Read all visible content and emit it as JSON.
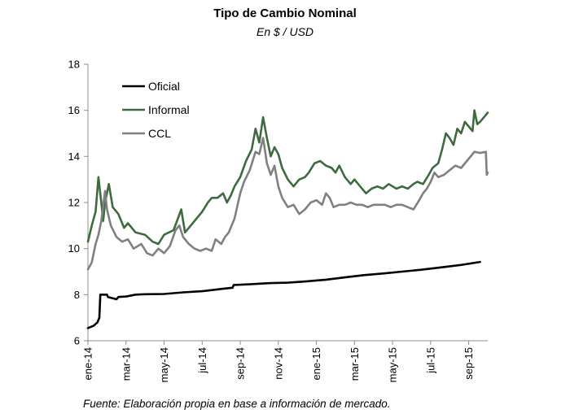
{
  "chart_data": {
    "type": "line",
    "title": "Tipo de Cambio Nominal",
    "subtitle": "En $ / USD",
    "source": "Fuente: Elaboración propia en base a información de mercado.",
    "ylim": [
      6,
      18
    ],
    "yticks": [
      6,
      8,
      10,
      12,
      14,
      16,
      18
    ],
    "xlim": [
      0,
      21
    ],
    "xticks": [
      {
        "x": 0,
        "label": "ene-14"
      },
      {
        "x": 2,
        "label": "mar-14"
      },
      {
        "x": 4,
        "label": "may-14"
      },
      {
        "x": 6,
        "label": "jul-14"
      },
      {
        "x": 8,
        "label": "sep-14"
      },
      {
        "x": 10,
        "label": "nov-14"
      },
      {
        "x": 12,
        "label": "ene-15"
      },
      {
        "x": 14,
        "label": "mar-15"
      },
      {
        "x": 16,
        "label": "may-15"
      },
      {
        "x": 18,
        "label": "jul-15"
      },
      {
        "x": 20,
        "label": "sep-15"
      }
    ],
    "grid": false,
    "legend_position": "top-left",
    "series": [
      {
        "name": "Oficial",
        "color": "#000000",
        "points": [
          [
            0,
            6.55
          ],
          [
            0.3,
            6.65
          ],
          [
            0.5,
            6.8
          ],
          [
            0.6,
            7.0
          ],
          [
            0.65,
            8.0
          ],
          [
            1.0,
            8.0
          ],
          [
            1.05,
            7.9
          ],
          [
            1.5,
            7.8
          ],
          [
            1.6,
            7.9
          ],
          [
            2.0,
            7.92
          ],
          [
            2.5,
            8.0
          ],
          [
            3.0,
            8.02
          ],
          [
            4.0,
            8.03
          ],
          [
            5.0,
            8.1
          ],
          [
            6.0,
            8.15
          ],
          [
            7.0,
            8.25
          ],
          [
            7.6,
            8.3
          ],
          [
            7.65,
            8.42
          ],
          [
            8.5,
            8.45
          ],
          [
            9.5,
            8.5
          ],
          [
            10.5,
            8.52
          ],
          [
            11.5,
            8.58
          ],
          [
            12.5,
            8.65
          ],
          [
            13.5,
            8.75
          ],
          [
            14.5,
            8.85
          ],
          [
            15.5,
            8.92
          ],
          [
            16.5,
            9.0
          ],
          [
            17.5,
            9.08
          ],
          [
            18.5,
            9.18
          ],
          [
            19.5,
            9.28
          ],
          [
            20.6,
            9.42
          ]
        ]
      },
      {
        "name": "Informal",
        "color": "#3E6A40",
        "points": [
          [
            0,
            10.3
          ],
          [
            0.2,
            11.0
          ],
          [
            0.4,
            11.6
          ],
          [
            0.55,
            13.1
          ],
          [
            0.7,
            12.0
          ],
          [
            0.8,
            11.2
          ],
          [
            0.9,
            12.0
          ],
          [
            1.1,
            12.8
          ],
          [
            1.3,
            11.8
          ],
          [
            1.6,
            11.5
          ],
          [
            1.9,
            10.9
          ],
          [
            2.1,
            11.1
          ],
          [
            2.5,
            10.7
          ],
          [
            3.0,
            10.6
          ],
          [
            3.4,
            10.3
          ],
          [
            3.7,
            10.2
          ],
          [
            4.0,
            10.6
          ],
          [
            4.5,
            10.8
          ],
          [
            4.9,
            11.7
          ],
          [
            5.1,
            10.7
          ],
          [
            5.4,
            11.0
          ],
          [
            5.7,
            11.3
          ],
          [
            6.0,
            11.6
          ],
          [
            6.3,
            12.0
          ],
          [
            6.5,
            12.2
          ],
          [
            6.8,
            12.2
          ],
          [
            7.1,
            12.4
          ],
          [
            7.3,
            12.0
          ],
          [
            7.5,
            12.3
          ],
          [
            7.7,
            12.7
          ],
          [
            8.0,
            13.1
          ],
          [
            8.3,
            13.8
          ],
          [
            8.6,
            14.3
          ],
          [
            8.8,
            15.2
          ],
          [
            9.0,
            14.6
          ],
          [
            9.2,
            15.7
          ],
          [
            9.4,
            14.8
          ],
          [
            9.6,
            14.0
          ],
          [
            9.8,
            14.4
          ],
          [
            10.0,
            14.1
          ],
          [
            10.2,
            13.5
          ],
          [
            10.5,
            13.0
          ],
          [
            10.8,
            12.7
          ],
          [
            11.1,
            13.0
          ],
          [
            11.4,
            13.1
          ],
          [
            11.6,
            13.3
          ],
          [
            11.9,
            13.7
          ],
          [
            12.2,
            13.8
          ],
          [
            12.5,
            13.6
          ],
          [
            12.8,
            13.5
          ],
          [
            13.0,
            13.3
          ],
          [
            13.2,
            13.6
          ],
          [
            13.5,
            13.1
          ],
          [
            13.8,
            12.8
          ],
          [
            14.0,
            13.0
          ],
          [
            14.3,
            12.7
          ],
          [
            14.6,
            12.4
          ],
          [
            14.9,
            12.6
          ],
          [
            15.2,
            12.7
          ],
          [
            15.5,
            12.6
          ],
          [
            15.8,
            12.8
          ],
          [
            16.2,
            12.6
          ],
          [
            16.5,
            12.7
          ],
          [
            16.8,
            12.6
          ],
          [
            17.1,
            12.8
          ],
          [
            17.3,
            12.9
          ],
          [
            17.6,
            12.8
          ],
          [
            17.9,
            13.2
          ],
          [
            18.1,
            13.5
          ],
          [
            18.4,
            13.7
          ],
          [
            18.6,
            14.3
          ],
          [
            18.8,
            15.0
          ],
          [
            19.0,
            14.8
          ],
          [
            19.2,
            14.5
          ],
          [
            19.4,
            15.2
          ],
          [
            19.6,
            15.0
          ],
          [
            19.8,
            15.5
          ],
          [
            20.0,
            15.3
          ],
          [
            20.2,
            15.1
          ],
          [
            20.3,
            16.0
          ],
          [
            20.45,
            15.4
          ],
          [
            20.6,
            15.5
          ],
          [
            20.9,
            15.8
          ],
          [
            21.0,
            15.9
          ]
        ]
      },
      {
        "name": "CCL",
        "color": "#808080",
        "points": [
          [
            0,
            9.1
          ],
          [
            0.2,
            9.4
          ],
          [
            0.4,
            10.2
          ],
          [
            0.55,
            10.6
          ],
          [
            0.7,
            11.2
          ],
          [
            0.9,
            12.5
          ],
          [
            1.0,
            11.7
          ],
          [
            1.2,
            11.0
          ],
          [
            1.5,
            10.5
          ],
          [
            1.8,
            10.3
          ],
          [
            2.1,
            10.4
          ],
          [
            2.4,
            10.0
          ],
          [
            2.8,
            10.2
          ],
          [
            3.1,
            9.8
          ],
          [
            3.4,
            9.7
          ],
          [
            3.7,
            10.0
          ],
          [
            4.0,
            9.8
          ],
          [
            4.3,
            10.1
          ],
          [
            4.6,
            10.8
          ],
          [
            4.8,
            11.0
          ],
          [
            5.0,
            10.5
          ],
          [
            5.3,
            10.2
          ],
          [
            5.6,
            10.0
          ],
          [
            5.9,
            9.9
          ],
          [
            6.2,
            10.0
          ],
          [
            6.5,
            9.9
          ],
          [
            6.7,
            10.4
          ],
          [
            7.0,
            10.2
          ],
          [
            7.2,
            10.5
          ],
          [
            7.4,
            10.7
          ],
          [
            7.7,
            11.3
          ],
          [
            8.0,
            12.4
          ],
          [
            8.2,
            12.9
          ],
          [
            8.5,
            13.4
          ],
          [
            8.8,
            14.2
          ],
          [
            9.0,
            14.1
          ],
          [
            9.2,
            14.8
          ],
          [
            9.4,
            13.7
          ],
          [
            9.6,
            13.2
          ],
          [
            9.8,
            13.6
          ],
          [
            10.0,
            12.7
          ],
          [
            10.2,
            12.2
          ],
          [
            10.5,
            11.8
          ],
          [
            10.8,
            11.9
          ],
          [
            11.1,
            11.5
          ],
          [
            11.4,
            11.7
          ],
          [
            11.7,
            12.0
          ],
          [
            12.0,
            12.1
          ],
          [
            12.3,
            11.9
          ],
          [
            12.5,
            12.4
          ],
          [
            12.7,
            12.2
          ],
          [
            12.9,
            11.8
          ],
          [
            13.2,
            11.9
          ],
          [
            13.5,
            11.9
          ],
          [
            13.8,
            12.0
          ],
          [
            14.1,
            11.9
          ],
          [
            14.4,
            11.9
          ],
          [
            14.7,
            11.8
          ],
          [
            15.0,
            11.9
          ],
          [
            15.3,
            11.9
          ],
          [
            15.6,
            11.9
          ],
          [
            15.9,
            11.8
          ],
          [
            16.2,
            11.9
          ],
          [
            16.5,
            11.9
          ],
          [
            16.8,
            11.8
          ],
          [
            17.1,
            11.7
          ],
          [
            17.4,
            12.1
          ],
          [
            17.6,
            12.4
          ],
          [
            17.8,
            12.6
          ],
          [
            18.0,
            12.9
          ],
          [
            18.2,
            13.3
          ],
          [
            18.4,
            13.1
          ],
          [
            18.7,
            13.2
          ],
          [
            19.0,
            13.4
          ],
          [
            19.3,
            13.6
          ],
          [
            19.6,
            13.5
          ],
          [
            19.9,
            13.8
          ],
          [
            20.1,
            14.0
          ],
          [
            20.3,
            14.2
          ],
          [
            20.6,
            14.15
          ],
          [
            20.9,
            14.2
          ],
          [
            20.95,
            13.2
          ],
          [
            21.0,
            13.3
          ]
        ]
      }
    ]
  }
}
